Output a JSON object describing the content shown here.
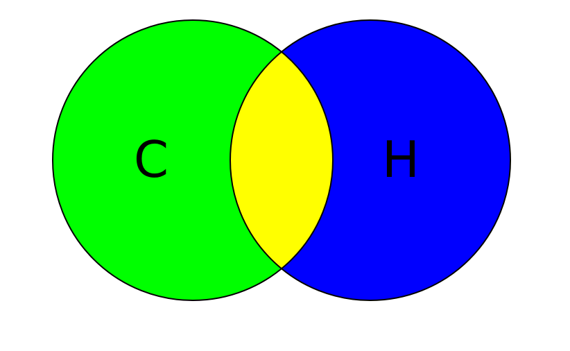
{
  "venn": {
    "sets": [
      {
        "label": "C",
        "color": "#00ff00"
      },
      {
        "label": "H",
        "color": "#0000ff"
      }
    ],
    "intersection": {
      "color": "#ffff00"
    },
    "outline_color": "#000000"
  }
}
